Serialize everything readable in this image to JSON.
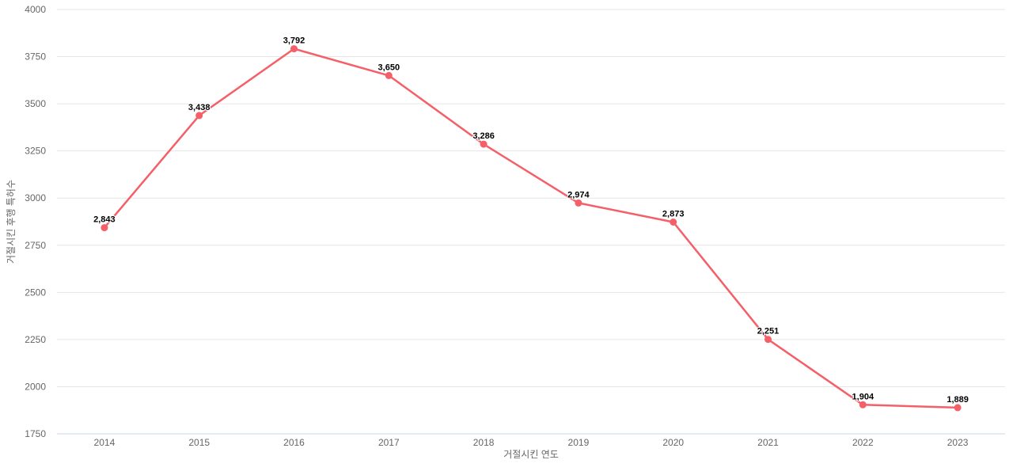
{
  "chart_data": {
    "type": "line",
    "categories": [
      "2014",
      "2015",
      "2016",
      "2017",
      "2018",
      "2019",
      "2020",
      "2021",
      "2022",
      "2023"
    ],
    "series": [
      {
        "values": [
          2843,
          3438,
          3792,
          3650,
          3286,
          2974,
          2873,
          2251,
          1904,
          1889
        ],
        "point_labels": [
          "2,843",
          "3,438",
          "3,792",
          "3,650",
          "3,286",
          "2,974",
          "2,873",
          "2,251",
          "1,904",
          "1,889"
        ]
      }
    ],
    "title": "",
    "xlabel": "거절시킨 연도",
    "ylabel": "거절시킨 후행 특허수",
    "ylim": [
      1750,
      4000
    ],
    "ytick_step": 250,
    "ytick_labels": [
      "1750",
      "2000",
      "2250",
      "2500",
      "2750",
      "3000",
      "3250",
      "3500",
      "3750",
      "4000"
    ],
    "grid": true,
    "legend_position": "none",
    "colors": {
      "line": "#f45f68",
      "marker": "#f45f68",
      "grid": "#e6e6e6",
      "axis_line": "#ccd6eb",
      "tick_label": "#666666",
      "axis_title": "#666666",
      "data_label": "#000000",
      "background": "#ffffff"
    }
  }
}
